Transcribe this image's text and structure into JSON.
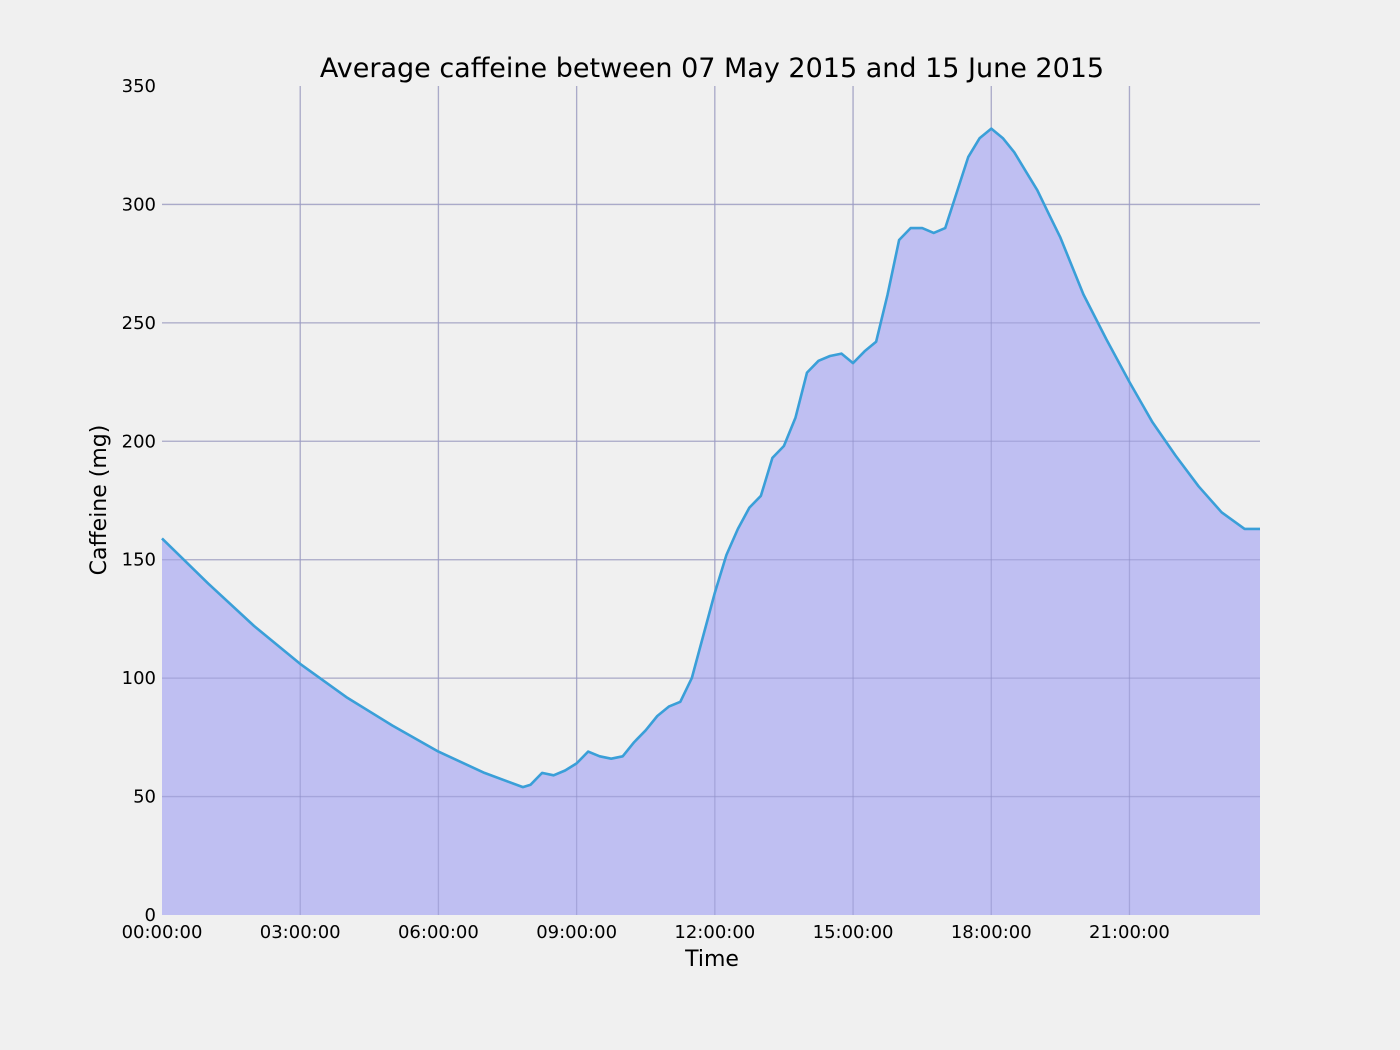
{
  "chart_data": {
    "type": "area",
    "title": "Average caffeine between 07 May 2015 and 15 June 2015",
    "xlabel": "Time",
    "ylabel": "Caffeine (mg)",
    "xlim": [
      "00:00:00",
      "23:50:00"
    ],
    "ylim": [
      0,
      350
    ],
    "x_ticks": [
      "00:00:00",
      "03:00:00",
      "06:00:00",
      "09:00:00",
      "12:00:00",
      "15:00:00",
      "18:00:00",
      "21:00:00"
    ],
    "y_ticks": [
      "0",
      "50",
      "100",
      "150",
      "200",
      "250",
      "300",
      "350"
    ],
    "grid": true,
    "legend": "none",
    "colors": {
      "line": "#3a9fd8",
      "fill": "#bfbff2",
      "background": "#f0f0f0",
      "grid": "#cbcbcb"
    },
    "series": [
      {
        "x": [
          "00:00:00",
          "01:00:00",
          "02:00:00",
          "03:00:00",
          "04:00:00",
          "05:00:00",
          "06:00:00",
          "07:00:00",
          "07:50:00",
          "08:00:00",
          "08:15:00",
          "08:30:00",
          "08:45:00",
          "09:00:00",
          "09:15:00",
          "09:30:00",
          "09:45:00",
          "10:00:00",
          "10:15:00",
          "10:30:00",
          "10:45:00",
          "11:00:00",
          "11:15:00",
          "11:30:00",
          "11:45:00",
          "12:00:00",
          "12:15:00",
          "12:30:00",
          "12:45:00",
          "13:00:00",
          "13:15:00",
          "13:30:00",
          "13:45:00",
          "14:00:00",
          "14:15:00",
          "14:30:00",
          "14:45:00",
          "15:00:00",
          "15:15:00",
          "15:30:00",
          "15:45:00",
          "16:00:00",
          "16:15:00",
          "16:30:00",
          "16:45:00",
          "17:00:00",
          "17:15:00",
          "17:30:00",
          "17:45:00",
          "18:00:00",
          "18:15:00",
          "18:30:00",
          "18:45:00",
          "19:00:00",
          "19:15:00",
          "19:30:00",
          "19:45:00",
          "20:00:00",
          "20:30:00",
          "21:00:00",
          "21:30:00",
          "22:00:00",
          "22:30:00",
          "23:00:00",
          "23:30:00",
          "23:50:00"
        ],
        "values": [
          159,
          140,
          122,
          106,
          92,
          80,
          69,
          60,
          54,
          55,
          60,
          59,
          61,
          64,
          69,
          67,
          66,
          67,
          73,
          78,
          84,
          88,
          90,
          100,
          118,
          136,
          152,
          163,
          172,
          177,
          193,
          198,
          210,
          229,
          234,
          236,
          237,
          233,
          238,
          242,
          262,
          285,
          290,
          290,
          288,
          290,
          305,
          320,
          328,
          332,
          328,
          322,
          314,
          306,
          296,
          286,
          274,
          262,
          243,
          225,
          208,
          194,
          181,
          170,
          163,
          163
        ]
      }
    ]
  }
}
